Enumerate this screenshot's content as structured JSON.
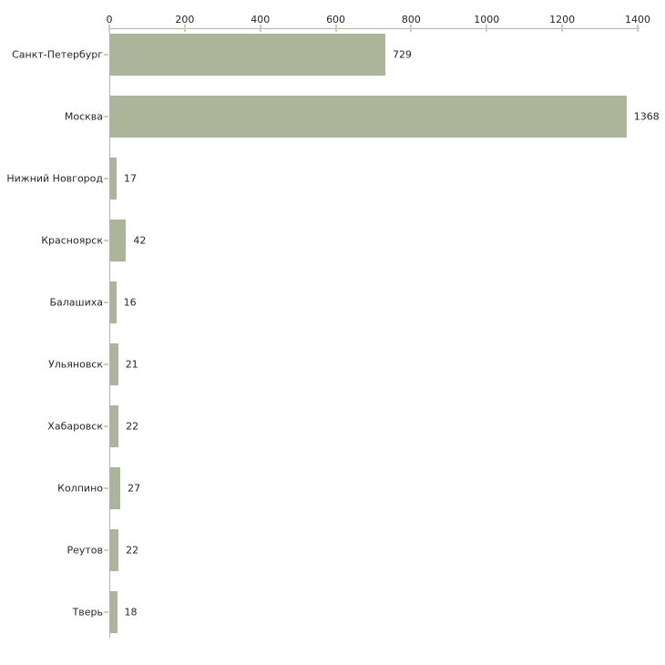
{
  "chart_data": {
    "type": "bar",
    "orientation": "horizontal",
    "title": "",
    "xlabel": "",
    "ylabel": "",
    "categories": [
      "Санкт-Петербург",
      "Москва",
      "Нижний Новгород",
      "Красноярск",
      "Балашиха",
      "Ульяновск",
      "Хабаровск",
      "Колпино",
      "Реутов",
      "Тверь"
    ],
    "values": [
      729,
      1368,
      17,
      42,
      16,
      21,
      22,
      27,
      22,
      18
    ],
    "x_ticks": [
      0,
      200,
      400,
      600,
      800,
      1000,
      1200,
      1400
    ],
    "xlim": [
      0,
      1400
    ],
    "grid": false,
    "legend": false,
    "axis_position": "top",
    "value_labels_shown": true,
    "colors": {
      "bar": "#acb59a",
      "tick": "#ccd1ab",
      "axis": "#b3b3b3",
      "text": "#262626",
      "background": "#ffffff"
    }
  }
}
